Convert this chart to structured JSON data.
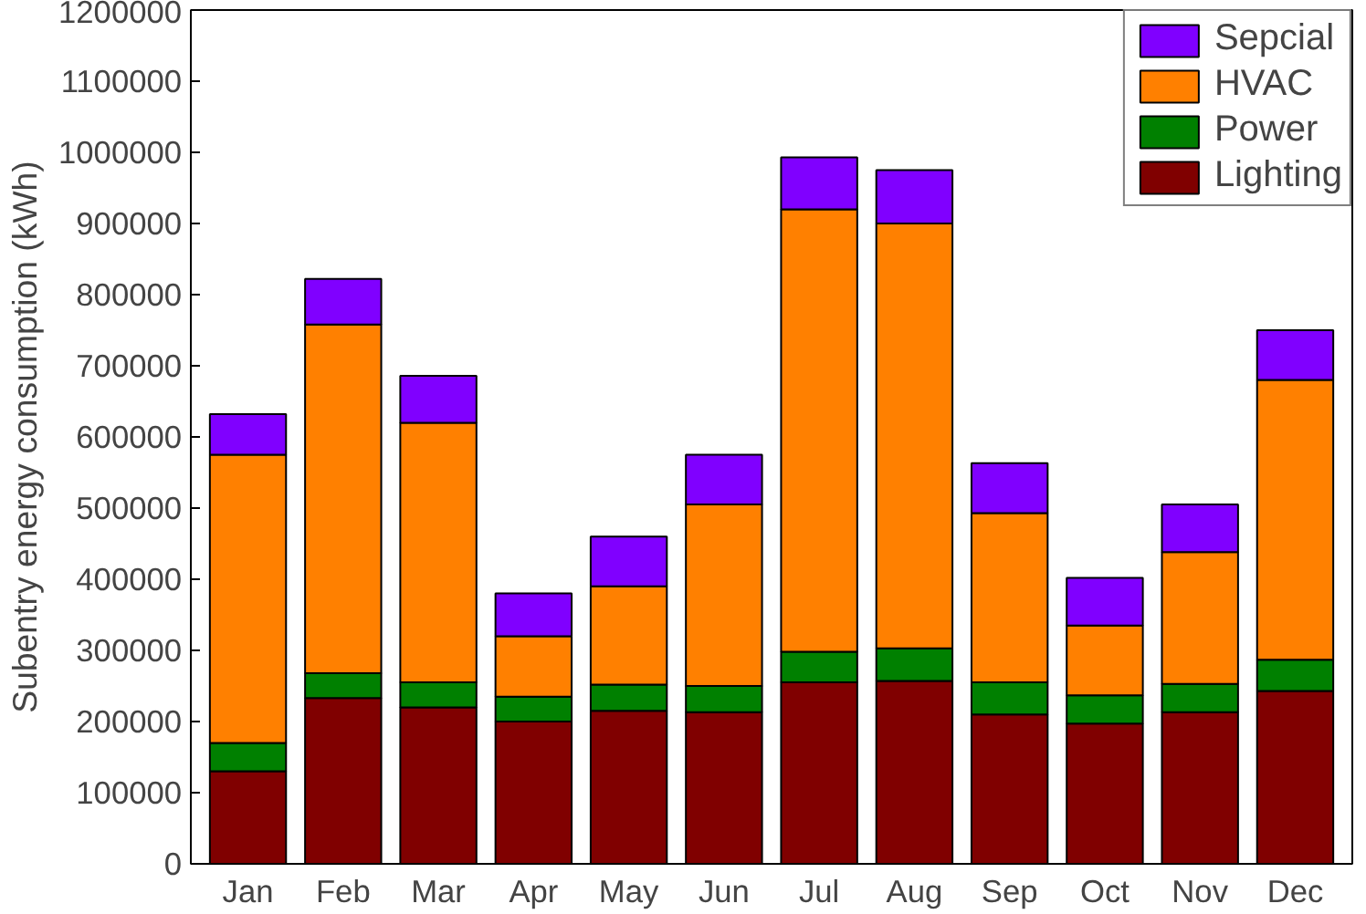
{
  "chart_data": {
    "type": "bar",
    "stacked": true,
    "ylabel": "Subentry energy consumption (kWh)",
    "categories": [
      "Jan",
      "Feb",
      "Mar",
      "Apr",
      "May",
      "Jun",
      "Jul",
      "Aug",
      "Sep",
      "Oct",
      "Nov",
      "Dec"
    ],
    "series": [
      {
        "name": "Lighting",
        "color": "#800000",
        "values": [
          130000,
          233000,
          220000,
          200000,
          215000,
          213000,
          255000,
          257000,
          210000,
          197000,
          213000,
          243000
        ]
      },
      {
        "name": "Power",
        "color": "#008000",
        "values": [
          40000,
          35000,
          35000,
          35000,
          37000,
          37000,
          43000,
          46000,
          45000,
          40000,
          40000,
          44000
        ]
      },
      {
        "name": "HVAC",
        "color": "#ff8000",
        "values": [
          405000,
          490000,
          365000,
          85000,
          138000,
          255000,
          622000,
          597000,
          238000,
          98000,
          185000,
          393000
        ]
      },
      {
        "name": "Sepcial",
        "color": "#8000ff",
        "values": [
          57000,
          64000,
          66000,
          60000,
          70000,
          70000,
          73000,
          75000,
          70000,
          67000,
          67000,
          70000
        ]
      }
    ],
    "ylim": [
      0,
      1200000
    ],
    "yticks": [
      0,
      100000,
      200000,
      300000,
      400000,
      500000,
      600000,
      700000,
      800000,
      900000,
      1000000,
      1100000,
      1200000
    ],
    "grid": false,
    "legend": "top right"
  }
}
